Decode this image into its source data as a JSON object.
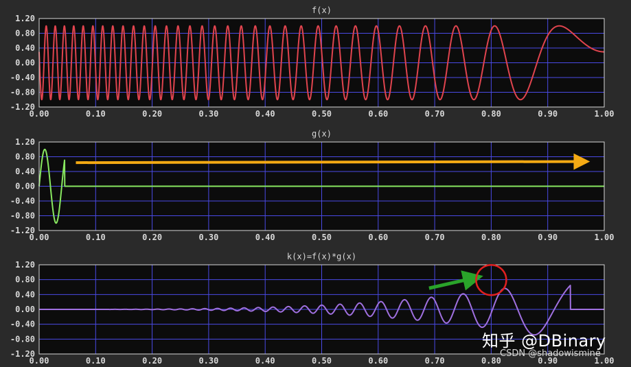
{
  "colors": {
    "background": "#2a2a2a",
    "plot_bg": "#0c0c0c",
    "grid": "#4a4ae6",
    "frame": "#d8d8d8",
    "text": "#d8d8d8",
    "f_series": "#e0444e",
    "g_series": "#88e860",
    "k_series": "#a070e0",
    "arrow_orange": "#f4aa14",
    "arrow_green": "#2aa32a",
    "circle": "#e02020"
  },
  "chart_data": [
    {
      "type": "line",
      "title": "f(x)",
      "xlim": [
        0,
        1
      ],
      "ylim": [
        -1.2,
        1.2
      ],
      "x_ticks": [
        "0.00",
        "0.10",
        "0.20",
        "0.30",
        "0.40",
        "0.50",
        "0.60",
        "0.70",
        "0.80",
        "0.90",
        "1.00"
      ],
      "y_ticks": [
        "1.20",
        "0.80",
        "0.40",
        "0.00",
        "-0.40",
        "-0.80",
        "-1.20"
      ],
      "grid": true,
      "series": [
        {
          "function": "sin(64 * pi * (1 - x)^2 + 0.3)",
          "color_key": "f_series"
        }
      ]
    },
    {
      "type": "line",
      "title": "g(x)",
      "xlim": [
        0,
        1
      ],
      "ylim": [
        -1.2,
        1.2
      ],
      "x_ticks": [
        "0.00",
        "0.10",
        "0.20",
        "0.30",
        "0.40",
        "0.50",
        "0.60",
        "0.70",
        "0.80",
        "0.90",
        "1.00"
      ],
      "y_ticks": [
        "1.20",
        "0.80",
        "0.40",
        "0.00",
        "-0.40",
        "-0.80",
        "-1.20"
      ],
      "grid": true,
      "series": [
        {
          "function": "sin(2*pi*x/0.04) for 0 <= x <= 0.045, else 0",
          "color_key": "g_series"
        }
      ],
      "annotations": [
        {
          "type": "arrow",
          "from": [
            0.065,
            0.64
          ],
          "to": [
            0.97,
            0.67
          ],
          "color_key": "arrow_orange"
        }
      ]
    },
    {
      "type": "line",
      "title": "k(x)=f(x)*g(x)",
      "xlim": [
        0,
        1
      ],
      "ylim": [
        -1.2,
        1.2
      ],
      "x_ticks": [
        "0.00",
        "0.10",
        "0.20",
        "0.30",
        "0.40",
        "0.50",
        "0.60",
        "0.70",
        "0.80",
        "0.90",
        "1.00"
      ],
      "y_ticks": [
        "1.20",
        "0.80",
        "0.40",
        "0.00",
        "-0.40",
        "-0.80",
        "-1.20"
      ],
      "grid": true,
      "series": [
        {
          "function": "correlation of f and g; amplitude grows toward x = 1, flat after 0.94",
          "color_key": "k_series"
        }
      ],
      "annotations": [
        {
          "type": "arrow",
          "from": [
            0.69,
            0.57
          ],
          "to": [
            0.78,
            0.88
          ],
          "color_key": "arrow_green"
        },
        {
          "type": "circle",
          "center": [
            0.8,
            0.79
          ],
          "color_key": "circle"
        }
      ]
    }
  ],
  "watermark": {
    "zhihu": "知乎 @DBinary",
    "csdn": "CSDN @shadowismine"
  }
}
